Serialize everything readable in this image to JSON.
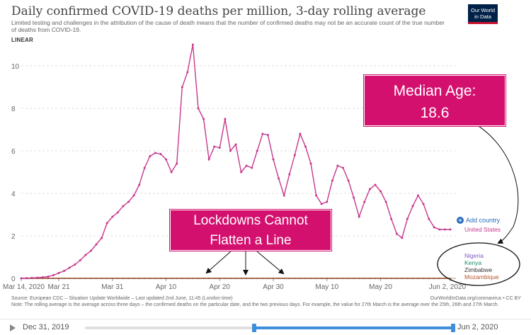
{
  "header": {
    "title": "Daily confirmed COVID-19 deaths per million, 3-day rolling average",
    "subtitle": "Limited testing and challenges in the attribution of the cause of death means that the number of confirmed deaths may not be an accurate count of the true number of deaths from COVID-19.",
    "scale_label": "LINEAR",
    "logo_line1": "Our World",
    "logo_line2": "in Data"
  },
  "chart_data": {
    "type": "line",
    "title": "Daily confirmed COVID-19 deaths per million, 3-day rolling average",
    "ylim": [
      0,
      11
    ],
    "yticks": [
      "0",
      "2",
      "4",
      "6",
      "8",
      "10"
    ],
    "x_start": "Mar 14, 2020",
    "x_end": "Jun 2, 2020",
    "xticks": [
      "Mar 14, 2020",
      "Mar 21",
      "Mar 31",
      "Apr 10",
      "Apr 20",
      "Apr 30",
      "May 10",
      "May 20",
      "Jun 2, 2020"
    ],
    "grid": true,
    "series": [
      {
        "name": "United States",
        "color": "#c7388d",
        "values": [
          0.0,
          0.01,
          0.02,
          0.03,
          0.05,
          0.08,
          0.15,
          0.25,
          0.35,
          0.5,
          0.65,
          0.85,
          1.1,
          1.3,
          1.6,
          1.9,
          2.6,
          2.9,
          3.1,
          3.4,
          3.6,
          3.9,
          4.4,
          5.2,
          5.75,
          5.9,
          5.85,
          5.6,
          5.0,
          5.4,
          9.0,
          9.7,
          11.0,
          8.0,
          7.5,
          5.6,
          6.2,
          6.15,
          7.5,
          6.0,
          6.3,
          5.0,
          5.3,
          5.2,
          6.0,
          6.8,
          6.75,
          5.6,
          4.7,
          3.9,
          4.9,
          5.8,
          6.8,
          6.2,
          5.4,
          3.9,
          3.5,
          3.6,
          4.6,
          5.3,
          5.2,
          4.6,
          3.8,
          2.9,
          3.6,
          4.2,
          4.4,
          4.1,
          3.6,
          2.8,
          2.1,
          1.9,
          2.8,
          3.4,
          3.9,
          3.5,
          2.8,
          2.4,
          2.3,
          2.3,
          2.3
        ]
      },
      {
        "name": "Nigeria",
        "color": "#7c56c2",
        "values": [
          0.0,
          0.0,
          0.0,
          0.0,
          0.0,
          0.0,
          0.0,
          0.0,
          0.0,
          0.0,
          0.0,
          0.0,
          0.0,
          0.0,
          0.0,
          0.0,
          0.0,
          0.0,
          0.0,
          0.0,
          0.0,
          0.0,
          0.0,
          0.0,
          0.0,
          0.0,
          0.0,
          0.0,
          0.0,
          0.0,
          0.0,
          0.0,
          0.0,
          0.0,
          0.0,
          0.0,
          0.0,
          0.0,
          0.0,
          0.0,
          0.0,
          0.0,
          0.0,
          0.0,
          0.0,
          0.0,
          0.0,
          0.0,
          0.0,
          0.0,
          0.0,
          0.0,
          0.0,
          0.0,
          0.0,
          0.0,
          0.0,
          0.0,
          0.0,
          0.0,
          0.0,
          0.0,
          0.0,
          0.0,
          0.0,
          0.0,
          0.0,
          0.0,
          0.0,
          0.0,
          0.0,
          0.0,
          0.0,
          0.0,
          0.0,
          0.0,
          0.0,
          0.0,
          0.0,
          0.0,
          0.0
        ]
      },
      {
        "name": "Kenya",
        "color": "#1a8a6e",
        "values": [
          0.0,
          0.0,
          0.0,
          0.0,
          0.0,
          0.0,
          0.0,
          0.0,
          0.0,
          0.0,
          0.0,
          0.0,
          0.0,
          0.0,
          0.0,
          0.0,
          0.0,
          0.0,
          0.0,
          0.0,
          0.0,
          0.0,
          0.0,
          0.0,
          0.0,
          0.0,
          0.0,
          0.0,
          0.0,
          0.0,
          0.0,
          0.0,
          0.0,
          0.0,
          0.0,
          0.0,
          0.0,
          0.0,
          0.0,
          0.0,
          0.0,
          0.0,
          0.0,
          0.0,
          0.0,
          0.0,
          0.0,
          0.0,
          0.0,
          0.0,
          0.0,
          0.0,
          0.0,
          0.0,
          0.0,
          0.0,
          0.0,
          0.0,
          0.0,
          0.0,
          0.0,
          0.0,
          0.0,
          0.0,
          0.0,
          0.0,
          0.0,
          0.0,
          0.0,
          0.0,
          0.0,
          0.0,
          0.0,
          0.0,
          0.0,
          0.0,
          0.0,
          0.0,
          0.0,
          0.0,
          0.0
        ]
      },
      {
        "name": "Zimbabwe",
        "color": "#333333",
        "values": [
          0.0,
          0.0,
          0.0,
          0.0,
          0.0,
          0.0,
          0.0,
          0.0,
          0.0,
          0.0,
          0.0,
          0.0,
          0.0,
          0.0,
          0.0,
          0.0,
          0.0,
          0.0,
          0.0,
          0.0,
          0.0,
          0.0,
          0.0,
          0.0,
          0.0,
          0.0,
          0.0,
          0.0,
          0.0,
          0.0,
          0.0,
          0.0,
          0.0,
          0.0,
          0.0,
          0.0,
          0.0,
          0.0,
          0.0,
          0.0,
          0.0,
          0.0,
          0.0,
          0.0,
          0.0,
          0.0,
          0.0,
          0.0,
          0.0,
          0.0,
          0.0,
          0.0,
          0.0,
          0.0,
          0.0,
          0.0,
          0.0,
          0.0,
          0.0,
          0.0,
          0.0,
          0.0,
          0.0,
          0.0,
          0.0,
          0.0,
          0.0,
          0.0,
          0.0,
          0.0,
          0.0,
          0.0,
          0.0,
          0.0,
          0.0,
          0.0,
          0.0,
          0.0,
          0.0,
          0.0,
          0.0
        ]
      },
      {
        "name": "Mozambique",
        "color": "#b5542a",
        "values": [
          0.0,
          0.0,
          0.0,
          0.0,
          0.0,
          0.0,
          0.0,
          0.0,
          0.0,
          0.0,
          0.0,
          0.0,
          0.0,
          0.0,
          0.0,
          0.0,
          0.0,
          0.0,
          0.0,
          0.0,
          0.0,
          0.0,
          0.0,
          0.0,
          0.0,
          0.0,
          0.0,
          0.0,
          0.0,
          0.0,
          0.0,
          0.0,
          0.0,
          0.0,
          0.0,
          0.0,
          0.0,
          0.0,
          0.0,
          0.0,
          0.0,
          0.0,
          0.0,
          0.0,
          0.0,
          0.0,
          0.0,
          0.0,
          0.0,
          0.0,
          0.0,
          0.0,
          0.0,
          0.0,
          0.0,
          0.0,
          0.0,
          0.0,
          0.0,
          0.0,
          0.0,
          0.0,
          0.0,
          0.0,
          0.0,
          0.0,
          0.0,
          0.0,
          0.0,
          0.0,
          0.0,
          0.0,
          0.0,
          0.0,
          0.0,
          0.0,
          0.0,
          0.0,
          0.0,
          0.0,
          0.0
        ]
      }
    ]
  },
  "callouts": {
    "median_line1": "Median Age:",
    "median_line2": "18.6",
    "lockdown_line1": "Lockdowns Cannot",
    "lockdown_line2": "Flatten a Line"
  },
  "add_country": {
    "icon": "plus-circle-icon",
    "label": "Add country"
  },
  "footer": {
    "source": "Source: European CDC – Situation Update Worldwide – Last updated 2nd June, 11:45 (London time)",
    "note": "Note: The rolling average is the average across three days – the confirmed deaths on the particular date, and the two previous days. For example, the value for 27th March is the average over the 25th, 26th and 27th March.",
    "url": "OurWorldInData.org/coronavirus • CC BY"
  },
  "timeline": {
    "play_icon": "play-icon",
    "start_label": "Dec 31, 2019",
    "end_label": "Jun 2, 2020",
    "selected_start_fraction": 0.46,
    "selected_end_fraction": 1.0
  }
}
